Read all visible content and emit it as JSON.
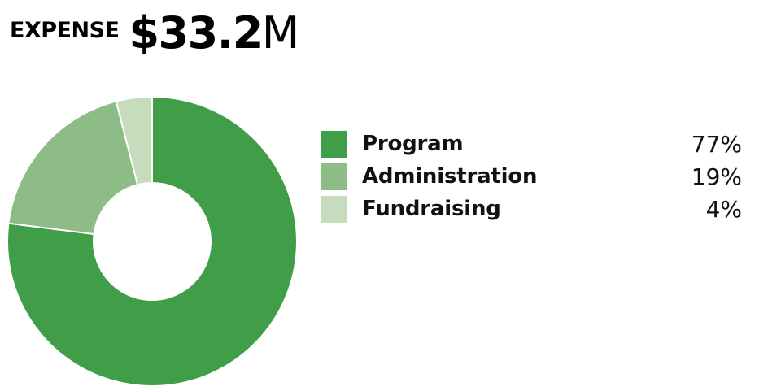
{
  "header": {
    "label": "EXPENSE",
    "amount_number": "$33.2",
    "amount_unit": "M"
  },
  "chart_data": {
    "type": "pie",
    "categories": [
      "Program",
      "Administration",
      "Fundraising"
    ],
    "values": [
      77,
      19,
      4
    ],
    "value_labels": [
      "77%",
      "19%",
      "4%"
    ],
    "colors": [
      "#409e49",
      "#8ebc86",
      "#c6dcbc"
    ],
    "legend_position": "right",
    "donut": true
  }
}
